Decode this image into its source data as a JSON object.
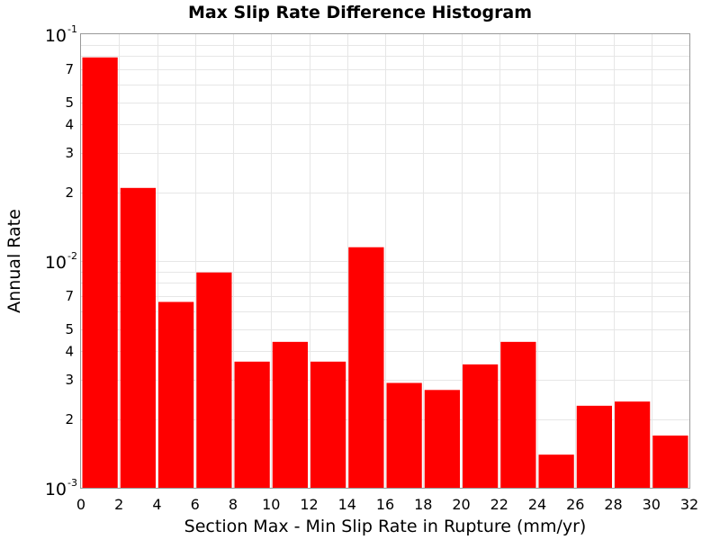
{
  "chart_data": {
    "type": "bar",
    "title": "Max Slip Rate Difference Histogram",
    "xlabel": "Section Max - Min Slip Rate in Rupture (mm/yr)",
    "ylabel": "Annual Rate",
    "yscale": "log",
    "xlim": [
      0,
      32
    ],
    "ylim": [
      0.001,
      0.1
    ],
    "grid": true,
    "bar_color": "#ff0000",
    "bin_width": 2,
    "x_ticks": [
      "0",
      "2",
      "4",
      "6",
      "8",
      "10",
      "12",
      "14",
      "16",
      "18",
      "20",
      "22",
      "24",
      "26",
      "28",
      "30",
      "32"
    ],
    "y_major_ticks": [
      {
        "base": "10",
        "exp": "-1",
        "value": 0.1
      },
      {
        "base": "10",
        "exp": "-2",
        "value": 0.01
      },
      {
        "base": "10",
        "exp": "-3",
        "value": 0.001
      }
    ],
    "y_minor_tick_labels": [
      "7",
      "5",
      "4",
      "3",
      "2"
    ],
    "bins": [
      {
        "x0": 0,
        "x1": 2,
        "value": 0.079
      },
      {
        "x0": 2,
        "x1": 4,
        "value": 0.021
      },
      {
        "x0": 4,
        "x1": 6,
        "value": 0.0066
      },
      {
        "x0": 6,
        "x1": 8,
        "value": 0.0089
      },
      {
        "x0": 8,
        "x1": 10,
        "value": 0.0036
      },
      {
        "x0": 10,
        "x1": 12,
        "value": 0.0044
      },
      {
        "x0": 12,
        "x1": 14,
        "value": 0.0036
      },
      {
        "x0": 14,
        "x1": 16,
        "value": 0.0115
      },
      {
        "x0": 16,
        "x1": 18,
        "value": 0.0029
      },
      {
        "x0": 18,
        "x1": 20,
        "value": 0.0027
      },
      {
        "x0": 20,
        "x1": 22,
        "value": 0.0035
      },
      {
        "x0": 22,
        "x1": 24,
        "value": 0.0044
      },
      {
        "x0": 24,
        "x1": 26,
        "value": 0.0014
      },
      {
        "x0": 26,
        "x1": 28,
        "value": 0.0023
      },
      {
        "x0": 28,
        "x1": 30,
        "value": 0.0024
      },
      {
        "x0": 30,
        "x1": 32,
        "value": 0.0017
      }
    ]
  }
}
